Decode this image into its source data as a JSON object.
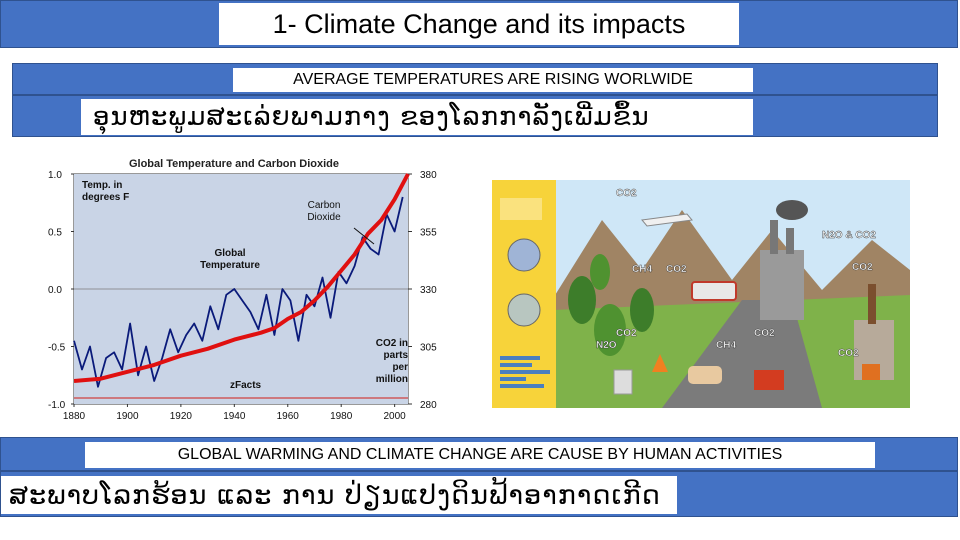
{
  "slide": {
    "title": "1- Climate Change and its impacts",
    "band1": "AVERAGE TEMPERATURES ARE RISING WORLWIDE",
    "band2": "ອຸນຫະພູມສະເລ່ຍພາມກາງ ຂອງໂລກກາລັງເພີ່ມຂຶ້ນ",
    "band3": "GLOBAL WARMING AND CLIMATE CHANGE ARE CAUSE BY HUMAN ACTIVITIES",
    "band4": "ສະພາບໂລກຮ້ອນ ແລະ ການ ປ່ຽນແປງດິນຟ້າອາກາດເກີດ"
  },
  "chart_data": {
    "type": "line",
    "title": "Global Temperature and Carbon Dioxide",
    "x_ticks": [
      1880,
      1900,
      1920,
      1940,
      1960,
      1980,
      2000
    ],
    "xlim": [
      1880,
      2005
    ],
    "y_left_ticks": [
      "1.0",
      "0.5",
      "0.0",
      "-0.5",
      "-1.0"
    ],
    "ylim_left": [
      -1.0,
      1.0
    ],
    "y_right_ticks": [
      "380",
      "355",
      "330",
      "305",
      "280"
    ],
    "ylim_right": [
      280,
      380
    ],
    "annotations": {
      "left_unit": [
        "Temp. in",
        "degrees F"
      ],
      "co2_label": [
        "Carbon",
        "Dioxide"
      ],
      "temp_label": [
        "Global",
        "Temperature"
      ],
      "right_unit": [
        "CO2 in",
        "parts",
        "per",
        "million"
      ],
      "source": "zFacts"
    },
    "series": [
      {
        "label": "temperature",
        "color": "#0a1a7a",
        "x": [
          1880,
          1883,
          1886,
          1889,
          1892,
          1895,
          1898,
          1901,
          1904,
          1907,
          1910,
          1913,
          1916,
          1919,
          1922,
          1925,
          1928,
          1931,
          1934,
          1937,
          1940,
          1943,
          1946,
          1949,
          1952,
          1955,
          1958,
          1961,
          1964,
          1967,
          1970,
          1973,
          1976,
          1979,
          1982,
          1985,
          1988,
          1991,
          1994,
          1997,
          2000,
          2003
        ],
        "values": [
          -0.45,
          -0.7,
          -0.5,
          -0.85,
          -0.6,
          -0.55,
          -0.7,
          -0.3,
          -0.75,
          -0.5,
          -0.8,
          -0.6,
          -0.35,
          -0.55,
          -0.4,
          -0.3,
          -0.45,
          -0.15,
          -0.35,
          -0.05,
          0.0,
          -0.1,
          -0.2,
          -0.35,
          -0.05,
          -0.4,
          0.0,
          -0.1,
          -0.45,
          -0.05,
          -0.15,
          0.1,
          -0.25,
          0.15,
          0.05,
          0.2,
          0.45,
          0.35,
          0.3,
          0.65,
          0.5,
          0.8
        ]
      },
      {
        "label": "co2",
        "color": "#e01010",
        "x": [
          1880,
          1890,
          1900,
          1910,
          1920,
          1930,
          1940,
          1950,
          1955,
          1960,
          1965,
          1970,
          1975,
          1980,
          1985,
          1990,
          1995,
          2000,
          2005
        ],
        "values": [
          290,
          291,
          294,
          297,
          301,
          304,
          308,
          311,
          313,
          317,
          320,
          325,
          331,
          338,
          345,
          354,
          360,
          369,
          380
        ]
      }
    ]
  },
  "infographic": {
    "labels": [
      "CO2",
      "N2O & CO2",
      "CH4",
      "CO2",
      "CO2",
      "CO2",
      "N2O",
      "CH4",
      "CO2",
      "CO2"
    ],
    "colors": {
      "sky": "#cfe7f7",
      "mountain": "#a08464",
      "grass": "#7fb24a",
      "road": "#7b7b7b",
      "panel": "#f7d33a"
    }
  }
}
